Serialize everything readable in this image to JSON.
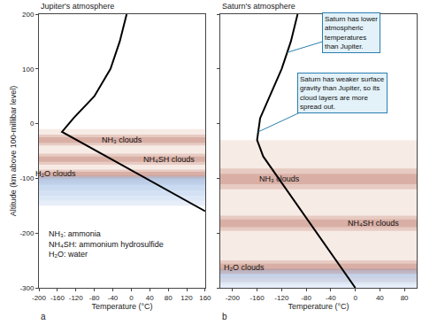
{
  "chart_data": [
    {
      "type": "line",
      "title": "Jupiter's atmosphere",
      "panel_label": "a",
      "x_label": "Temperature (°C)",
      "y_label": "Altitude (km above 100-millibar level)",
      "x": [
        -10,
        -25,
        -45,
        -80,
        -125,
        -150,
        -60,
        40,
        160
      ],
      "values": [
        200,
        150,
        100,
        50,
        10,
        -15,
        -57,
        -104,
        -160
      ],
      "color": "#000000",
      "xlim": [
        -200,
        160
      ],
      "ylim": [
        -300,
        200
      ],
      "xticks": [
        -200,
        -160,
        -120,
        -80,
        -40,
        0,
        40,
        80,
        120,
        160
      ],
      "yticks": [
        -300,
        -200,
        -100,
        0,
        100,
        200
      ],
      "grid": false,
      "tick_labels": true,
      "haze": {
        "bottom": -110,
        "top": -10,
        "color": "#f3e2dc"
      },
      "deep_layer": {
        "bottom": -150,
        "top": -95,
        "color": "#9fbde6"
      },
      "cloud_layers": [
        {
          "label": "NH₃ clouds",
          "bottom": -40,
          "top": -20,
          "color": "#c88e80"
        },
        {
          "label": "NH₄SH clouds",
          "bottom": -75,
          "top": -55,
          "color": "#c88e80"
        },
        {
          "label": "H₂O clouds",
          "bottom": -100,
          "top": -84,
          "color": "#c88e80"
        }
      ],
      "key": [
        "NH₃: ammonia",
        "NH₄SH: ammonium hydrosulfide",
        "H₂O: water"
      ],
      "callouts": []
    },
    {
      "type": "line",
      "title": "Saturn's atmosphere",
      "panel_label": "b",
      "x_label": "Temperature (°C)",
      "x": [
        -94,
        -105,
        -120,
        -140,
        -155,
        -160,
        -150,
        -120,
        -80,
        -40,
        0
      ],
      "values": [
        200,
        150,
        100,
        50,
        10,
        -30,
        -60,
        -108,
        -172,
        -236,
        -300
      ],
      "color": "#000000",
      "xlim": [
        -220,
        100
      ],
      "ylim": [
        -300,
        200
      ],
      "xticks": [
        -200,
        -160,
        -120,
        -80,
        -40,
        0,
        40,
        80
      ],
      "yticks": [
        -300,
        -200,
        -100,
        0,
        100,
        200
      ],
      "grid": false,
      "tick_labels": "x",
      "haze": {
        "bottom": -290,
        "top": -30,
        "color": "#f3e2dc"
      },
      "deep_layer": {
        "bottom": -300,
        "top": -265,
        "color": "#9fbde6"
      },
      "cloud_layers": [
        {
          "label": "NH₃ clouds",
          "bottom": -120,
          "top": -82,
          "color": "#c88e80"
        },
        {
          "label": "NH₄SH clouds",
          "bottom": -196,
          "top": -168,
          "color": "#c88e80"
        },
        {
          "label": "H₂O clouds",
          "bottom": -274,
          "top": -250,
          "color": "#c88e80"
        }
      ],
      "key": [],
      "callouts": [
        {
          "lines": [
            "Saturn has lower",
            "atmospheric",
            "temperatures",
            "than Jupiter."
          ],
          "target": [
            -111,
            130
          ]
        },
        {
          "lines": [
            "Saturn has weaker surface",
            "gravity than Jupiter, so its",
            "cloud layers are more",
            "spread out."
          ],
          "target": [
            -158,
            -15
          ]
        }
      ]
    }
  ]
}
